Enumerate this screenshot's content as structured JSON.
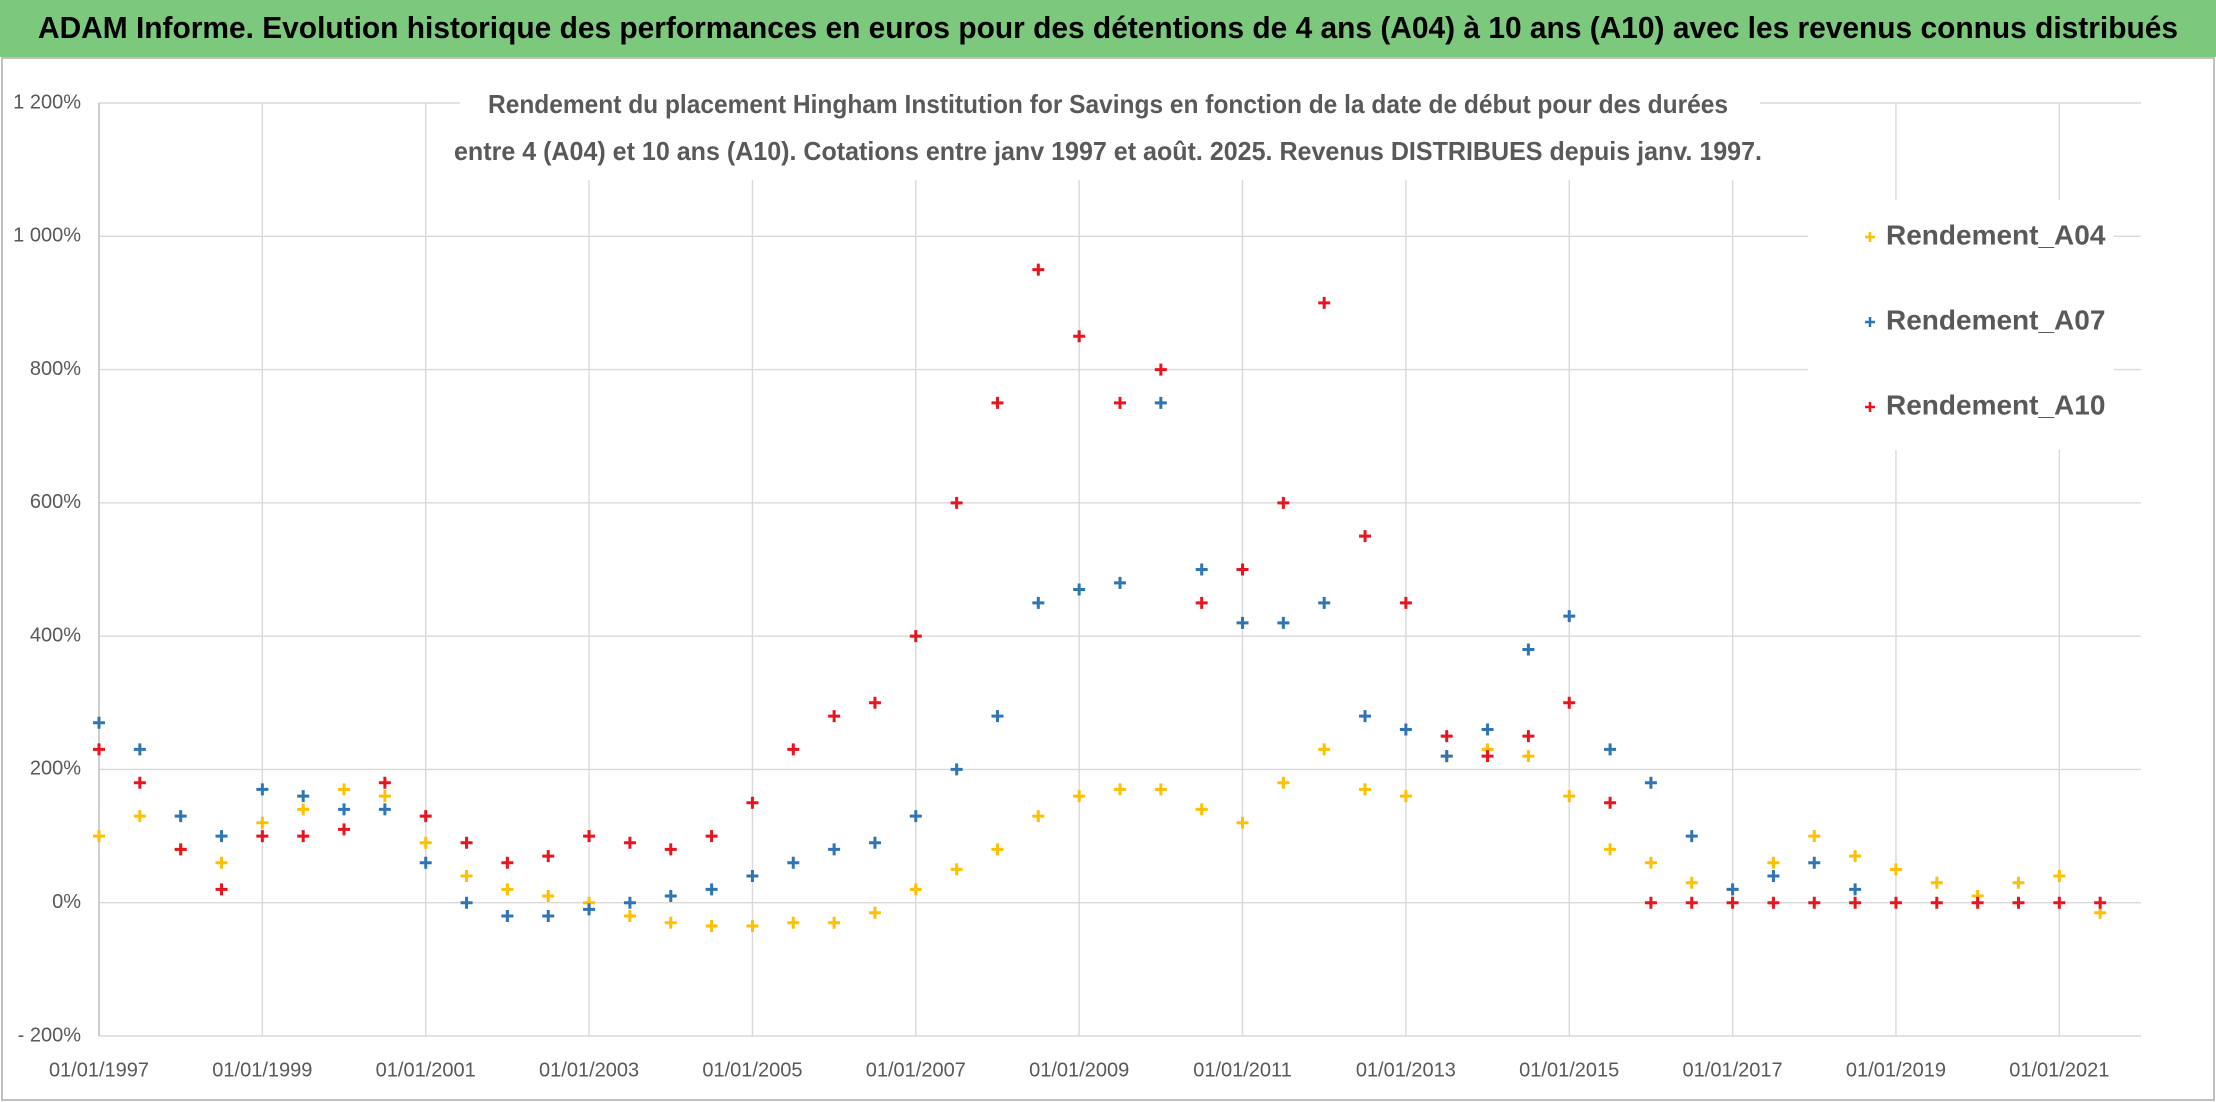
{
  "page_title": "ADAM Informe. Evolution historique des performances en euros pour des détentions de 4 ans (A04) à 10 ans (A10) avec les revenus connus distribués",
  "chart_data": {
    "type": "scatter",
    "title": [
      "Rendement du placement Hingham Institution for Savings en fonction de la date de début pour des durées",
      "entre 4 (A04) et 10 ans (A10). Cotations entre janv 1997 et août. 2025. Revenus DISTRIBUES depuis janv. 1997."
    ],
    "x": [
      "01/01/1997",
      "01/07/1997",
      "01/01/1998",
      "01/07/1998",
      "01/01/1999",
      "01/07/1999",
      "01/01/2000",
      "01/07/2000",
      "01/01/2001",
      "01/07/2001",
      "01/01/2002",
      "01/07/2002",
      "01/01/2003",
      "01/07/2003",
      "01/01/2004",
      "01/07/2004",
      "01/01/2005",
      "01/07/2005",
      "01/01/2006",
      "01/07/2006",
      "01/01/2007",
      "01/07/2007",
      "01/01/2008",
      "01/07/2008",
      "01/01/2009",
      "01/07/2009",
      "01/01/2010",
      "01/07/2010",
      "01/01/2011",
      "01/07/2011",
      "01/01/2012",
      "01/07/2012",
      "01/01/2013",
      "01/07/2013",
      "01/01/2014",
      "01/07/2014",
      "01/01/2015",
      "01/07/2015",
      "01/01/2016",
      "01/07/2016",
      "01/01/2017",
      "01/07/2017",
      "01/01/2018",
      "01/07/2018",
      "01/01/2019",
      "01/07/2019",
      "01/01/2020",
      "01/07/2020",
      "01/01/2021",
      "01/07/2021"
    ],
    "series": [
      {
        "name": "Rendement_A04",
        "color": "#ffc000",
        "values": [
          100,
          130,
          80,
          60,
          120,
          140,
          170,
          160,
          90,
          40,
          20,
          10,
          0,
          -20,
          -30,
          -35,
          -35,
          -30,
          -30,
          -15,
          20,
          50,
          80,
          130,
          160,
          170,
          170,
          140,
          120,
          180,
          230,
          170,
          160,
          220,
          230,
          220,
          160,
          80,
          60,
          30,
          20,
          60,
          100,
          70,
          50,
          30,
          10,
          30,
          40,
          -15
        ]
      },
      {
        "name": "Rendement_A07",
        "color": "#2e75b6",
        "values": [
          270,
          230,
          130,
          100,
          170,
          160,
          140,
          140,
          60,
          0,
          -20,
          -20,
          -10,
          0,
          10,
          20,
          40,
          60,
          80,
          90,
          130,
          200,
          280,
          450,
          470,
          480,
          750,
          500,
          420,
          420,
          450,
          280,
          260,
          220,
          260,
          380,
          430,
          230,
          180,
          100,
          20,
          40,
          60,
          20,
          null,
          null,
          null,
          null,
          null,
          null
        ]
      },
      {
        "name": "Rendement_A10",
        "color": "#e8141e",
        "values": [
          230,
          180,
          80,
          20,
          100,
          100,
          110,
          180,
          130,
          90,
          60,
          70,
          100,
          90,
          80,
          100,
          150,
          230,
          280,
          300,
          400,
          600,
          750,
          950,
          850,
          750,
          800,
          450,
          500,
          600,
          900,
          550,
          450,
          250,
          220,
          250,
          300,
          150,
          0,
          0,
          0,
          0,
          0,
          0,
          0,
          0,
          0,
          0,
          0,
          0
        ]
      }
    ],
    "xlim": [
      "01/01/1997",
      "01/01/2022"
    ],
    "xticks": [
      "01/01/1997",
      "01/01/1999",
      "01/01/2001",
      "01/01/2003",
      "01/01/2005",
      "01/01/2007",
      "01/01/2009",
      "01/01/2011",
      "01/01/2013",
      "01/01/2015",
      "01/01/2017",
      "01/01/2019",
      "01/01/2021"
    ],
    "ylim": [
      -200,
      1200
    ],
    "yticks": [
      {
        "value": -200,
        "label": "- 200%"
      },
      {
        "value": 0,
        "label": "0%"
      },
      {
        "value": 200,
        "label": "200%"
      },
      {
        "value": 400,
        "label": "400%"
      },
      {
        "value": 600,
        "label": "600%"
      },
      {
        "value": 800,
        "label": "800%"
      },
      {
        "value": 1000,
        "label": "1 000%"
      },
      {
        "value": 1200,
        "label": "1 200%"
      }
    ],
    "grid": true,
    "legend": "upper right"
  }
}
